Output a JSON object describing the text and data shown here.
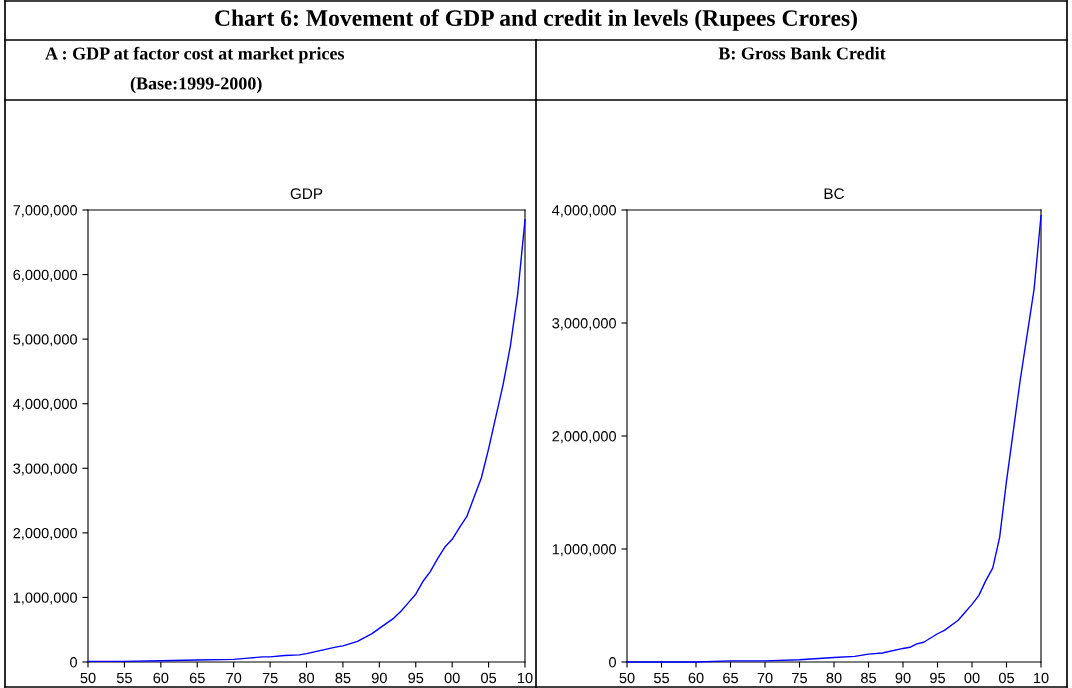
{
  "chart_data": [
    {
      "type": "line",
      "title": "GDP",
      "annotations": [
        "Chart 6: Movement of GDP and credit in levels (Rupees Crores)",
        "A : GDP at factor cost at market prices",
        "(Base:1999-2000)"
      ],
      "x": [
        1950,
        1955,
        1960,
        1965,
        1970,
        1972,
        1974,
        1975,
        1977,
        1979,
        1980,
        1982,
        1984,
        1985,
        1987,
        1989,
        1990,
        1992,
        1993,
        1994,
        1995,
        1996,
        1997,
        1998,
        1999,
        2000,
        2001,
        2002,
        2003,
        2004,
        2005,
        2006,
        2007,
        2008,
        2009,
        2010
      ],
      "series": [
        {
          "color": "#0000ff",
          "values": [
            10000,
            10000,
            20000,
            30000,
            40000,
            60000,
            80000,
            80000,
            100000,
            110000,
            130000,
            180000,
            230000,
            250000,
            320000,
            440000,
            520000,
            680000,
            790000,
            920000,
            1050000,
            1250000,
            1400000,
            1600000,
            1780000,
            1900000,
            2080000,
            2250000,
            2550000,
            2850000,
            3300000,
            3800000,
            4300000,
            4900000,
            5700000,
            6850000
          ]
        }
      ],
      "xlim": [
        1950,
        2010
      ],
      "xticks": [
        {
          "value": 1950,
          "label": "50"
        },
        {
          "value": 1955,
          "label": "55"
        },
        {
          "value": 1960,
          "label": "60"
        },
        {
          "value": 1965,
          "label": "65"
        },
        {
          "value": 1970,
          "label": "70"
        },
        {
          "value": 1975,
          "label": "75"
        },
        {
          "value": 1980,
          "label": "80"
        },
        {
          "value": 1985,
          "label": "85"
        },
        {
          "value": 1990,
          "label": "90"
        },
        {
          "value": 1995,
          "label": "95"
        },
        {
          "value": 2000,
          "label": "00"
        },
        {
          "value": 2005,
          "label": "05"
        },
        {
          "value": 2010,
          "label": "10"
        }
      ],
      "ylim": [
        0,
        7000000
      ],
      "yticks": [
        {
          "value": 0,
          "label": "0"
        },
        {
          "value": 1000000,
          "label": "1,000,000"
        },
        {
          "value": 2000000,
          "label": "2,000,000"
        },
        {
          "value": 3000000,
          "label": "3,000,000"
        },
        {
          "value": 4000000,
          "label": "4,000,000"
        },
        {
          "value": 5000000,
          "label": "5,000,000"
        },
        {
          "value": 6000000,
          "label": "6,000,000"
        },
        {
          "value": 7000000,
          "label": "7,000,000"
        }
      ],
      "grid": false,
      "legend": false
    },
    {
      "type": "line",
      "title": "BC",
      "annotations": [
        "B: Gross Bank Credit"
      ],
      "x": [
        1950,
        1955,
        1960,
        1965,
        1970,
        1975,
        1980,
        1983,
        1985,
        1987,
        1990,
        1991,
        1992,
        1993,
        1995,
        1996,
        1998,
        1999,
        2000,
        2001,
        2002,
        2003,
        2004,
        2005,
        2006,
        2007,
        2008,
        2009,
        2010
      ],
      "series": [
        {
          "color": "#0000ff",
          "values": [
            0,
            0,
            0,
            10000,
            10000,
            20000,
            40000,
            50000,
            70000,
            80000,
            120000,
            130000,
            160000,
            175000,
            250000,
            280000,
            370000,
            440000,
            510000,
            590000,
            720000,
            830000,
            1100000,
            1600000,
            2050000,
            2500000,
            2900000,
            3300000,
            3950000
          ]
        }
      ],
      "xlim": [
        1950,
        2010
      ],
      "xticks": [
        {
          "value": 1950,
          "label": "50"
        },
        {
          "value": 1955,
          "label": "55"
        },
        {
          "value": 1960,
          "label": "60"
        },
        {
          "value": 1965,
          "label": "65"
        },
        {
          "value": 1970,
          "label": "70"
        },
        {
          "value": 1975,
          "label": "75"
        },
        {
          "value": 1980,
          "label": "80"
        },
        {
          "value": 1985,
          "label": "85"
        },
        {
          "value": 1990,
          "label": "90"
        },
        {
          "value": 1995,
          "label": "95"
        },
        {
          "value": 2000,
          "label": "00"
        },
        {
          "value": 2005,
          "label": "05"
        },
        {
          "value": 2010,
          "label": "10"
        }
      ],
      "ylim": [
        0,
        4000000
      ],
      "yticks": [
        {
          "value": 0,
          "label": "0"
        },
        {
          "value": 1000000,
          "label": "1,000,000"
        },
        {
          "value": 2000000,
          "label": "2,000,000"
        },
        {
          "value": 3000000,
          "label": "3,000,000"
        },
        {
          "value": 4000000,
          "label": "4,000,000"
        }
      ],
      "grid": false,
      "legend": false
    }
  ]
}
